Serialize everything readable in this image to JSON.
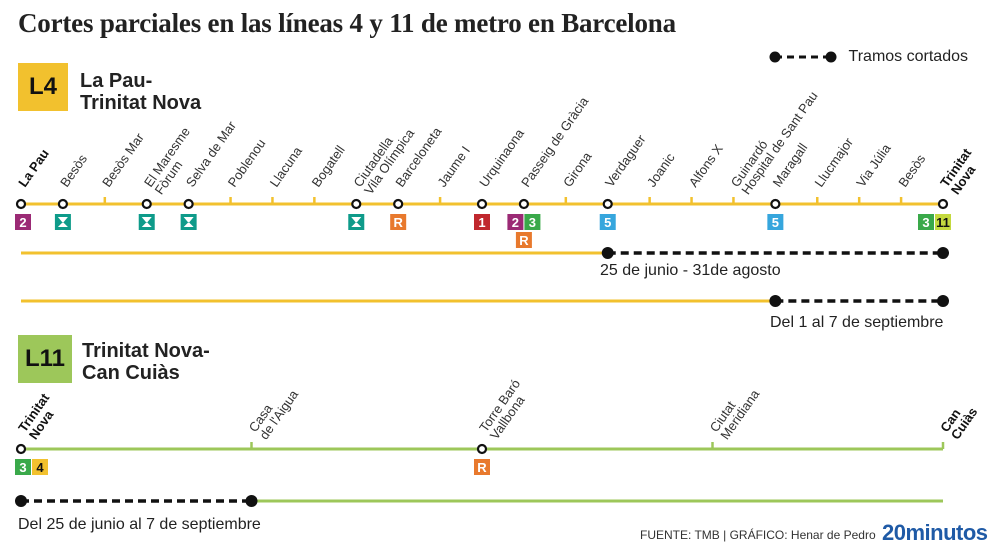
{
  "title": "Cortes parciales en las líneas 4 y 11 de metro en Barcelona",
  "legend": {
    "label": "Tramos cortados"
  },
  "colors": {
    "l4": "#f2c12e",
    "l11": "#9dc75a",
    "dash": "#111111",
    "l1": "#c0272d",
    "l2": "#9b2a75",
    "l3": "#3aa94a",
    "l5": "#36a6dd",
    "l11box": "#c4d93f",
    "renfe": "#e8792d",
    "tram": "#0e9b8a"
  },
  "l4": {
    "badge": "L4",
    "name_line1": "La Pau-",
    "name_line2": "Trinitat Nova",
    "stations": [
      "La Pau",
      "Besòs",
      "Besòs Mar",
      "El Maresme Fòrum",
      "Selva de Mar",
      "Poblenou",
      "Llacuna",
      "Bogatell",
      "Ciutadella Vila Olímpica",
      "Barceloneta",
      "Jaume I",
      "Urquinaona",
      "Passeig de Gràcia",
      "Girona",
      "Verdaguer",
      "Joanic",
      "Alfons X",
      "Guinardó Hospital de Sant Pau",
      "Maragall",
      "Llucmajor",
      "Via Júlia",
      "Besòs",
      "Trinitat Nova"
    ],
    "label_lines": [
      [
        "La Pau"
      ],
      [
        "Besòs"
      ],
      [
        "Besòs Mar"
      ],
      [
        "El Maresme",
        "Fòrum"
      ],
      [
        "Selva de Mar"
      ],
      [
        "Poblenou"
      ],
      [
        "Llacuna"
      ],
      [
        "Bogatell"
      ],
      [
        "Ciutadella",
        "Vila Olímpica"
      ],
      [
        "Barceloneta"
      ],
      [
        "Jaume I"
      ],
      [
        "Urquinaona"
      ],
      [
        "Passeig de Gràcia"
      ],
      [
        "Girona"
      ],
      [
        "Verdaguer"
      ],
      [
        "Joanic"
      ],
      [
        "Alfons X"
      ],
      [
        "Guinardó",
        "Hospital de Sant Pau"
      ],
      [
        "Maragall"
      ],
      [
        "Llucmajor"
      ],
      [
        "Via Júlia"
      ],
      [
        "Besòs"
      ],
      [
        "Trinitat",
        "Nova"
      ]
    ],
    "interchanges": [
      {
        "station": 0,
        "boxes": [
          "2"
        ]
      },
      {
        "station": 1,
        "boxes": [
          "T"
        ]
      },
      {
        "station": 3,
        "boxes": [
          "T"
        ]
      },
      {
        "station": 4,
        "boxes": [
          "T"
        ]
      },
      {
        "station": 8,
        "boxes": [
          "T"
        ]
      },
      {
        "station": 9,
        "boxes": [
          "R"
        ]
      },
      {
        "station": 11,
        "boxes": [
          "1"
        ]
      },
      {
        "station": 12,
        "boxes": [
          "2",
          "3"
        ],
        "below": "R"
      },
      {
        "station": 14,
        "boxes": [
          "5"
        ]
      },
      {
        "station": 18,
        "boxes": [
          "5"
        ]
      },
      {
        "station": 22,
        "boxes": [
          "3",
          "11"
        ]
      }
    ],
    "cuts": [
      {
        "from": 14,
        "to": 22,
        "caption": "25 de junio - 31de agosto"
      },
      {
        "from": 18,
        "to": 22,
        "caption": "Del 1 al 7 de septiembre"
      }
    ]
  },
  "l11": {
    "badge": "L11",
    "name_line1": "Trinitat Nova-",
    "name_line2": "Can Cuiàs",
    "stations": [
      "Trinitat Nova",
      "Casa de l'Aigua",
      "Torre Baró Vallbona",
      "Ciutat Meridiana",
      "Can Cuiàs"
    ],
    "label_lines": [
      [
        "Trinitat",
        "Nova"
      ],
      [
        "Casa",
        "de l'Aigua"
      ],
      [
        "Torre Baró",
        "Vallbona"
      ],
      [
        "Ciutat",
        "Meridiana"
      ],
      [
        "Can",
        "Cuiàs"
      ]
    ],
    "interchanges": [
      {
        "station": 0,
        "boxes": [
          "3",
          "4"
        ]
      },
      {
        "station": 2,
        "boxes": [
          "R"
        ]
      }
    ],
    "cuts": [
      {
        "from": 0,
        "to": 1,
        "caption": "Del 25 de junio al 7 de septiembre"
      }
    ]
  },
  "footer": "FUENTE: TMB  |  GRÁFICO: Henar de Pedro",
  "brand": "20minutos"
}
